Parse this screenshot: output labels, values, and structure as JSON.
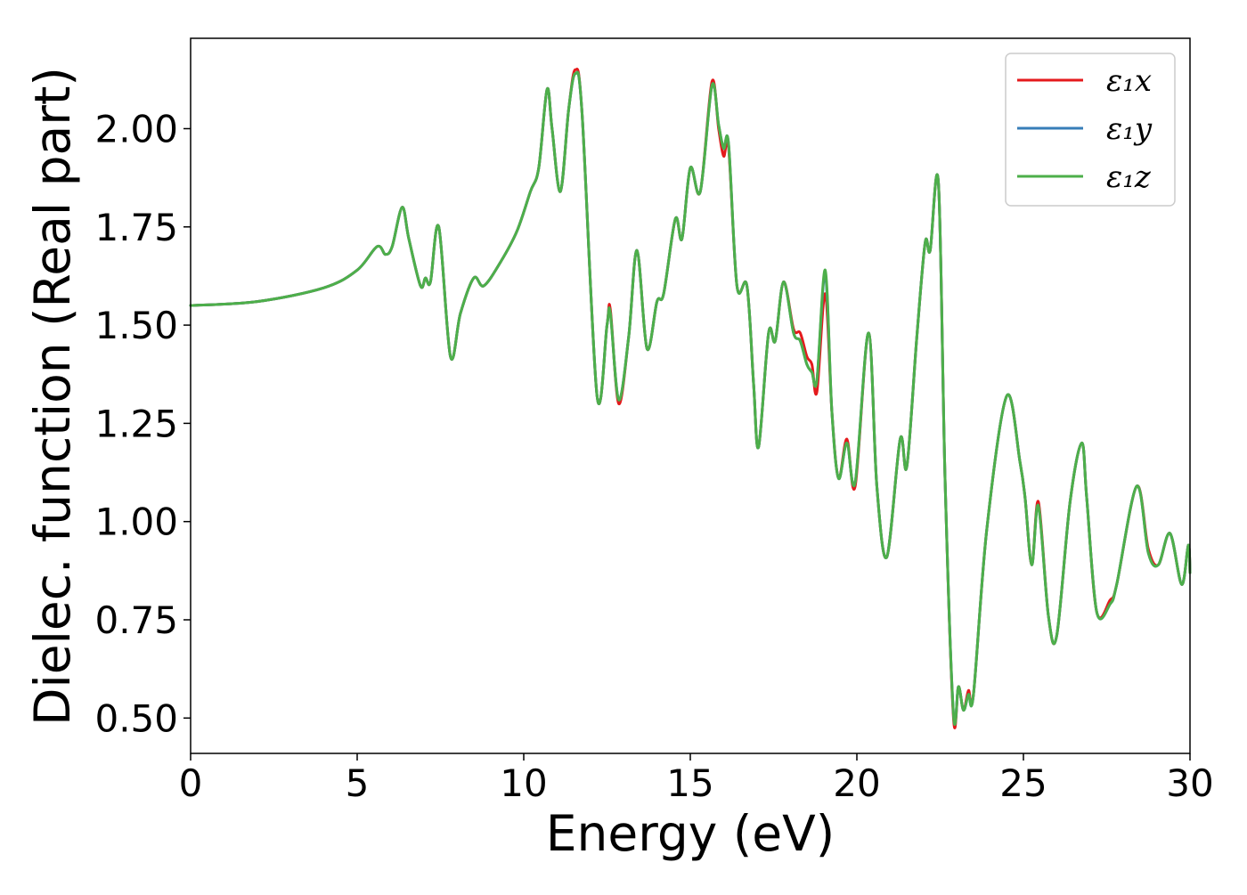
{
  "chart_data": {
    "type": "line",
    "title": "",
    "xlabel": "Energy (eV)",
    "ylabel": "Dielec. function (Real part)",
    "xlim": [
      0,
      30
    ],
    "ylim": [
      0.41,
      2.23
    ],
    "grid": false,
    "legend_position": "top-right",
    "x_ticks": [
      {
        "value": 0,
        "label": "0"
      },
      {
        "value": 5,
        "label": "5"
      },
      {
        "value": 10,
        "label": "10"
      },
      {
        "value": 15,
        "label": "15"
      },
      {
        "value": 20,
        "label": "20"
      },
      {
        "value": 25,
        "label": "25"
      },
      {
        "value": 30,
        "label": "30"
      }
    ],
    "y_ticks": [
      {
        "value": 0.5,
        "label": "0.50"
      },
      {
        "value": 0.75,
        "label": "0.75"
      },
      {
        "value": 1.0,
        "label": "1.00"
      },
      {
        "value": 1.25,
        "label": "1.25"
      },
      {
        "value": 1.5,
        "label": "1.50"
      },
      {
        "value": 1.75,
        "label": "1.75"
      },
      {
        "value": 2.0,
        "label": "2.00"
      }
    ],
    "x": [
      0,
      2,
      4,
      5,
      5.6,
      5.85,
      6.05,
      6.35,
      6.55,
      6.9,
      7.05,
      7.2,
      7.45,
      7.8,
      8.1,
      8.5,
      8.8,
      9.3,
      9.8,
      10.2,
      10.45,
      10.7,
      10.85,
      11.1,
      11.35,
      11.55,
      11.75,
      12.2,
      12.5,
      12.6,
      12.85,
      13.15,
      13.4,
      13.7,
      14.0,
      14.2,
      14.55,
      14.75,
      15.0,
      15.3,
      15.65,
      15.85,
      16.0,
      16.15,
      16.4,
      16.7,
      16.9,
      17.05,
      17.35,
      17.55,
      17.8,
      18.1,
      18.3,
      18.5,
      18.65,
      18.8,
      19.05,
      19.25,
      19.45,
      19.7,
      19.95,
      20.35,
      20.6,
      20.9,
      21.3,
      21.5,
      21.8,
      22.05,
      22.2,
      22.45,
      22.65,
      22.9,
      23.05,
      23.2,
      23.35,
      23.5,
      23.9,
      24.5,
      24.9,
      25.05,
      25.25,
      25.45,
      25.75,
      26.0,
      26.4,
      26.75,
      26.9,
      27.2,
      27.6,
      27.8,
      28.4,
      28.75,
      29.05,
      29.4,
      29.75,
      29.95,
      30.0
    ],
    "series": [
      {
        "name": "ε₁x",
        "color": "#e41a1c",
        "y": [
          1.55,
          1.56,
          1.595,
          1.64,
          1.7,
          1.68,
          1.7,
          1.8,
          1.72,
          1.6,
          1.62,
          1.61,
          1.75,
          1.42,
          1.53,
          1.62,
          1.6,
          1.66,
          1.74,
          1.84,
          1.9,
          2.1,
          2.0,
          1.84,
          2.05,
          2.15,
          2.04,
          1.32,
          1.5,
          1.54,
          1.3,
          1.47,
          1.69,
          1.44,
          1.56,
          1.58,
          1.77,
          1.72,
          1.9,
          1.84,
          2.12,
          2.0,
          1.93,
          1.95,
          1.6,
          1.6,
          1.35,
          1.19,
          1.48,
          1.46,
          1.61,
          1.49,
          1.48,
          1.42,
          1.4,
          1.33,
          1.58,
          1.28,
          1.11,
          1.21,
          1.09,
          1.48,
          1.09,
          0.91,
          1.21,
          1.14,
          1.47,
          1.71,
          1.69,
          1.86,
          1.1,
          0.5,
          0.58,
          0.52,
          0.57,
          0.56,
          0.98,
          1.32,
          1.15,
          1.06,
          0.89,
          1.05,
          0.76,
          0.71,
          1.05,
          1.2,
          1.06,
          0.77,
          0.8,
          0.84,
          1.09,
          0.93,
          0.89,
          0.97,
          0.84,
          0.94,
          0.87
        ]
      },
      {
        "name": "ε₁y",
        "color": "#377eb8",
        "y": [
          1.55,
          1.56,
          1.595,
          1.64,
          1.7,
          1.68,
          1.7,
          1.8,
          1.72,
          1.6,
          1.62,
          1.61,
          1.75,
          1.42,
          1.53,
          1.62,
          1.6,
          1.66,
          1.74,
          1.84,
          1.9,
          2.1,
          2.0,
          1.84,
          2.05,
          2.14,
          2.04,
          1.32,
          1.5,
          1.53,
          1.31,
          1.47,
          1.69,
          1.44,
          1.56,
          1.58,
          1.77,
          1.72,
          1.9,
          1.84,
          2.11,
          2.01,
          1.95,
          1.96,
          1.6,
          1.6,
          1.35,
          1.19,
          1.48,
          1.46,
          1.61,
          1.48,
          1.46,
          1.4,
          1.38,
          1.36,
          1.63,
          1.28,
          1.11,
          1.2,
          1.1,
          1.48,
          1.09,
          0.91,
          1.21,
          1.14,
          1.47,
          1.71,
          1.69,
          1.86,
          1.1,
          0.51,
          0.58,
          0.52,
          0.56,
          0.56,
          0.98,
          1.32,
          1.15,
          1.06,
          0.89,
          1.04,
          0.76,
          0.71,
          1.05,
          1.2,
          1.06,
          0.77,
          0.79,
          0.84,
          1.09,
          0.92,
          0.89,
          0.97,
          0.84,
          0.94,
          0.87
        ]
      },
      {
        "name": "ε₁z",
        "color": "#4daf4a",
        "y": [
          1.55,
          1.56,
          1.595,
          1.64,
          1.7,
          1.68,
          1.7,
          1.8,
          1.72,
          1.6,
          1.62,
          1.61,
          1.75,
          1.42,
          1.53,
          1.62,
          1.6,
          1.66,
          1.74,
          1.84,
          1.9,
          2.1,
          2.0,
          1.84,
          2.05,
          2.14,
          2.04,
          1.32,
          1.5,
          1.53,
          1.31,
          1.47,
          1.69,
          1.44,
          1.56,
          1.58,
          1.77,
          1.72,
          1.9,
          1.84,
          2.11,
          2.01,
          1.95,
          1.96,
          1.6,
          1.6,
          1.35,
          1.19,
          1.48,
          1.46,
          1.61,
          1.48,
          1.46,
          1.4,
          1.38,
          1.36,
          1.64,
          1.28,
          1.11,
          1.2,
          1.1,
          1.48,
          1.09,
          0.91,
          1.21,
          1.14,
          1.47,
          1.71,
          1.69,
          1.86,
          1.1,
          0.51,
          0.58,
          0.52,
          0.56,
          0.56,
          0.98,
          1.32,
          1.15,
          1.06,
          0.89,
          1.04,
          0.76,
          0.71,
          1.05,
          1.2,
          1.06,
          0.77,
          0.79,
          0.84,
          1.09,
          0.92,
          0.89,
          0.97,
          0.84,
          0.94,
          0.87
        ]
      }
    ]
  }
}
